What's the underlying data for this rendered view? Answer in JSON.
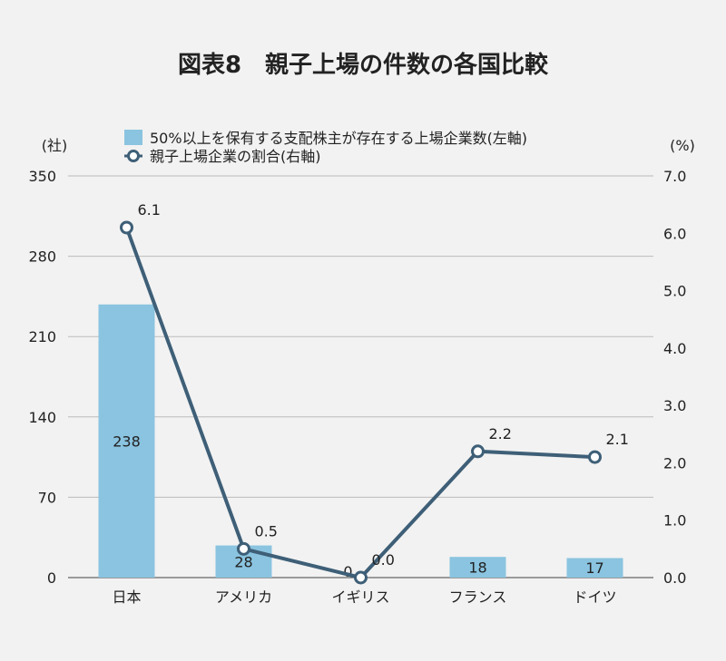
{
  "chart_data": {
    "type": "bar+line",
    "title": "図表8　親子上場の件数の各国比較",
    "categories": [
      "日本",
      "アメリカ",
      "イギリス",
      "フランス",
      "ドイツ"
    ],
    "series": [
      {
        "name": "50%以上を保有する支配株主が存在する上場企業数(左軸)",
        "type": "bar",
        "axis": "left",
        "color": "#8ac4e0",
        "values": [
          238,
          28,
          0,
          18,
          17
        ]
      },
      {
        "name": "親子上場企業の割合(右軸)",
        "type": "line",
        "axis": "right",
        "color": "#3e5f77",
        "values": [
          6.1,
          0.5,
          0.0,
          2.2,
          2.1
        ],
        "labels": [
          "6.1",
          "0.5",
          "0.0",
          "2.2",
          "2.1"
        ]
      }
    ],
    "left_axis": {
      "unit_label": "(社)",
      "ylim": [
        0,
        350
      ],
      "ticks": [
        "0",
        "70",
        "140",
        "210",
        "280",
        "350"
      ]
    },
    "right_axis": {
      "unit_label": "(%)",
      "ylim": [
        0,
        7
      ],
      "ticks": [
        "0.0",
        "1.0",
        "2.0",
        "3.0",
        "4.0",
        "5.0",
        "6.0",
        "7.0"
      ]
    },
    "grid": true,
    "legend_position": "top"
  }
}
